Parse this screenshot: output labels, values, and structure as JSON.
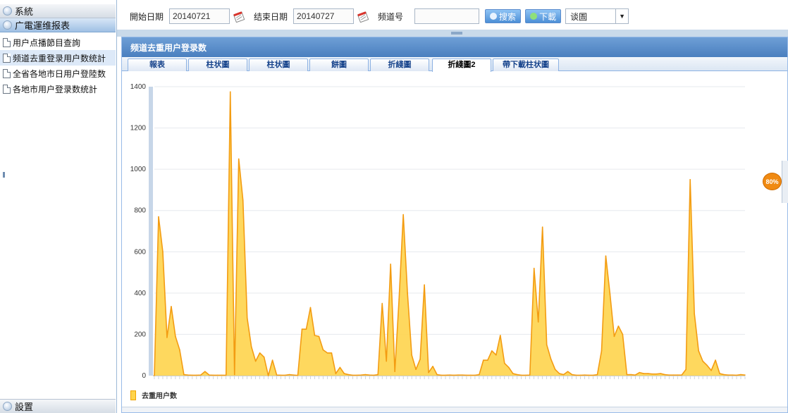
{
  "sidebar": {
    "system_label": "系統",
    "report_label": "广電運维报表",
    "settings_label": "設置",
    "items": [
      {
        "label": "用户点播節目查詢"
      },
      {
        "label": "频道去重登录用户数统計"
      },
      {
        "label": "全省各地市日用户登陸数"
      },
      {
        "label": "各地市用户登录数统計"
      }
    ]
  },
  "query": {
    "start_label": "開始日期",
    "start_value": "20140721",
    "end_label": "结束日期",
    "end_value": "20140727",
    "channel_label": "频道号",
    "channel_value": "",
    "search_label": "搜索",
    "download_label": "下載",
    "select_value": "谈圄"
  },
  "panel": {
    "title": "频道去重用户登录数",
    "tabs": [
      "報表",
      "柱状圖",
      "柱状圖",
      "餅圖",
      "折綫圖",
      "折綫圖2",
      "帶下載柱状圖"
    ],
    "active_tab": 5
  },
  "zoom_badge": "80%",
  "colors": {
    "fill": "#fed44d",
    "line": "#f39c12",
    "accent": "#4a7fbf"
  },
  "chart_data": {
    "type": "area",
    "title": "",
    "xlabel": "",
    "ylabel": "",
    "ylim": [
      0,
      1400
    ],
    "yticks": [
      0,
      200,
      400,
      600,
      800,
      1000,
      1200,
      1400
    ],
    "grid": true,
    "legend": "bottom-left",
    "series": [
      {
        "name": "去重用户数",
        "values": [
          0,
          770,
          600,
          185,
          335,
          190,
          125,
          5,
          3,
          2,
          2,
          3,
          20,
          3,
          2,
          2,
          2,
          2,
          1375,
          5,
          1050,
          850,
          280,
          140,
          70,
          110,
          90,
          0,
          75,
          3,
          2,
          2,
          5,
          3,
          1,
          225,
          225,
          330,
          195,
          190,
          125,
          110,
          110,
          10,
          40,
          10,
          5,
          2,
          2,
          3,
          5,
          3,
          2,
          5,
          350,
          70,
          540,
          20,
          370,
          780,
          400,
          100,
          30,
          80,
          440,
          15,
          45,
          5,
          2,
          2,
          3,
          2,
          3,
          3,
          2,
          2,
          2,
          5,
          75,
          75,
          120,
          100,
          195,
          60,
          40,
          10,
          5,
          2,
          2,
          3,
          520,
          260,
          720,
          150,
          80,
          30,
          10,
          5,
          20,
          5,
          2,
          2,
          3,
          2,
          2,
          5,
          120,
          580,
          395,
          190,
          240,
          200,
          5,
          5,
          3,
          15,
          10,
          10,
          8,
          8,
          10,
          5,
          3,
          3,
          3,
          3,
          30,
          950,
          300,
          120,
          70,
          50,
          25,
          75,
          10,
          5,
          3,
          3,
          2,
          5,
          3
        ]
      }
    ]
  }
}
